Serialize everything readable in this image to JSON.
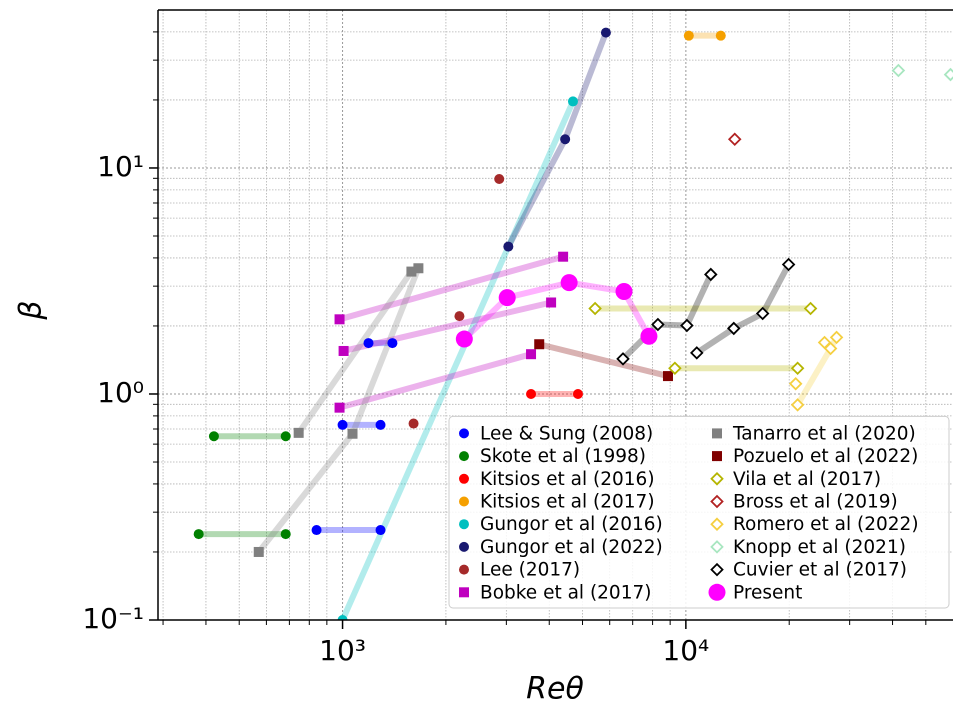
{
  "chart_data": {
    "type": "scatter",
    "xlabel": "Reθ",
    "ylabel": "β",
    "xlog": true,
    "ylog": true,
    "grid": true,
    "legend": "lower right",
    "xlim": [
      290,
      60000
    ],
    "ylim": [
      0.1,
      50
    ],
    "xticks": [
      {
        "value": 1000,
        "label": "10³"
      },
      {
        "value": 10000,
        "label": "10⁴"
      }
    ],
    "yticks": [
      {
        "value": 0.1,
        "label": "10⁻¹"
      },
      {
        "value": 1,
        "label": "10⁰"
      },
      {
        "value": 10,
        "label": "10¹"
      }
    ],
    "xminor": [
      300,
      400,
      500,
      600,
      700,
      800,
      900,
      2000,
      3000,
      4000,
      5000,
      6000,
      7000,
      8000,
      9000,
      20000,
      30000,
      40000,
      50000
    ],
    "yminor": [
      0.2,
      0.3,
      0.4,
      0.5,
      0.6,
      0.7,
      0.8,
      0.9,
      2,
      3,
      4,
      5,
      6,
      7,
      8,
      9,
      20,
      30,
      40
    ],
    "series": [
      {
        "name": "Lee & Sung (2008)",
        "color": "#0000ff",
        "marker": "circle",
        "line": true,
        "x": [
          1190,
          1397,
          null,
          1000,
          1290,
          null,
          840,
          1290
        ],
        "y": [
          1.68,
          1.68,
          null,
          0.73,
          0.73,
          null,
          0.25,
          0.25
        ]
      },
      {
        "name": "Skote et al (1998)",
        "color": "#008000",
        "marker": "circle",
        "line": true,
        "x": [
          422,
          683,
          null,
          381,
          683
        ],
        "y": [
          0.65,
          0.65,
          null,
          0.24,
          0.24
        ]
      },
      {
        "name": "Kitsios et al (2016)",
        "color": "#ff0000",
        "marker": "circle",
        "line": true,
        "x": [
          3540,
          4850
        ],
        "y": [
          1.0,
          1.0
        ]
      },
      {
        "name": "Kitsios et al (2017)",
        "color": "#f5a000",
        "marker": "circle",
        "line": true,
        "x": [
          10200,
          12640
        ],
        "y": [
          38.5,
          38.5
        ]
      },
      {
        "name": "Gungor et al (2016)",
        "color": "#00bfbf",
        "marker": "circle",
        "line": true,
        "x": [
          1000,
          4690
        ],
        "y": [
          0.1,
          19.7
        ]
      },
      {
        "name": "Gungor et al (2022)",
        "color": "#191970",
        "marker": "circle",
        "line": true,
        "x": [
          3040,
          4450,
          5850
        ],
        "y": [
          4.49,
          13.4,
          39.7
        ]
      },
      {
        "name": "Lee (2017)",
        "color": "#a52a2a",
        "marker": "circle",
        "line": false,
        "x": [
          2860,
          2190,
          1610
        ],
        "y": [
          8.94,
          2.21,
          0.74
        ]
      },
      {
        "name": "Bobke et al (2017)",
        "color": "#bf00bf",
        "marker": "square",
        "line": true,
        "x": [
          980,
          4390,
          null,
          1007,
          4050,
          null,
          980,
          3540
        ],
        "y": [
          2.14,
          4.05,
          null,
          1.55,
          2.54,
          null,
          0.87,
          1.5
        ]
      },
      {
        "name": "Tanarro et al (2020)",
        "color": "#808080",
        "marker": "square",
        "line": true,
        "x": [
          570,
          1069,
          1663,
          null,
          745,
          1587
        ],
        "y": [
          0.2,
          0.667,
          3.6,
          null,
          0.673,
          3.48
        ]
      },
      {
        "name": "Pozuelo et al (2022)",
        "color": "#800000",
        "marker": "square",
        "line": true,
        "x": [
          3740,
          8870
        ],
        "y": [
          1.66,
          1.2
        ]
      },
      {
        "name": "Vila et al (2017)",
        "color": "#b5b500",
        "marker": "diamond",
        "line": true,
        "x": [
          5440,
          23080,
          null,
          9290,
          21160
        ],
        "y": [
          2.39,
          2.39,
          null,
          1.3,
          1.3
        ]
      },
      {
        "name": "Bross et al (2019)",
        "color": "#b22222",
        "marker": "diamond",
        "line": false,
        "x": [
          13880
        ],
        "y": [
          13.4
        ]
      },
      {
        "name": "Romero et al (2022)",
        "color": "#f5cf40",
        "marker": "diamond",
        "line": true,
        "x": [
          20890,
          null,
          25350,
          null,
          21160,
          26400,
          27480
        ],
        "y": [
          1.11,
          null,
          1.69,
          null,
          0.895,
          1.59,
          1.78
        ]
      },
      {
        "name": "Knopp et al (2021)",
        "color": "#a8e6c0",
        "marker": "diamond",
        "line": false,
        "x": [
          41600,
          59000
        ],
        "y": [
          27.0,
          25.9
        ]
      },
      {
        "name": "Cuvier et al (2017)",
        "color": "#000000",
        "marker": "diamond",
        "line": true,
        "x": [
          6560,
          8290,
          10070,
          11820,
          null,
          10760,
          13790,
          16740,
          19920
        ],
        "y": [
          1.43,
          2.03,
          2.01,
          3.38,
          null,
          1.52,
          1.95,
          2.27,
          3.74
        ]
      },
      {
        "name": "Present",
        "color": "#ff00ff",
        "marker": "large-circle",
        "line": true,
        "x": [
          2263,
          3017,
          4571,
          6604,
          7806
        ],
        "y": [
          1.75,
          2.67,
          3.11,
          2.84,
          1.8
        ]
      }
    ]
  }
}
